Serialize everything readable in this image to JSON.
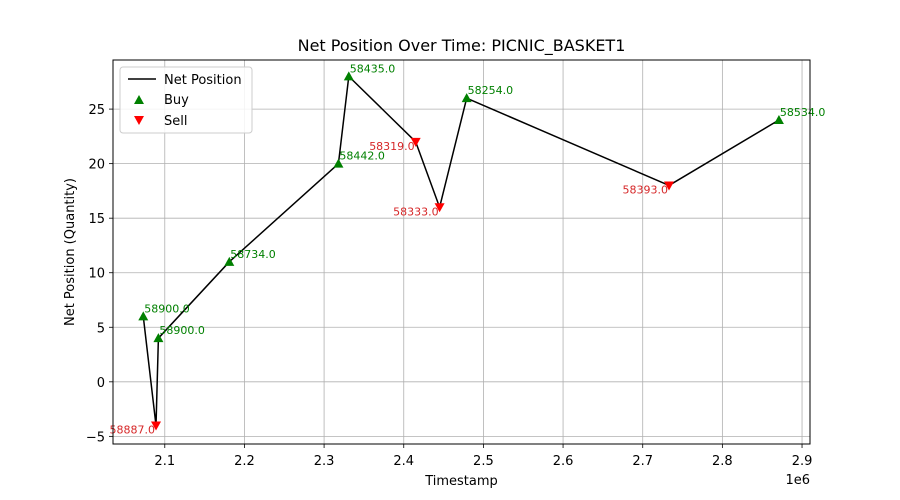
{
  "chart_data": {
    "type": "line",
    "title": "Net Position Over Time: PICNIC_BASKET1",
    "xlabel": "Timestamp",
    "ylabel": "Net Position (Quantity)",
    "x_multiplier_label": "1e6",
    "xlim": [
      2.035,
      2.91
    ],
    "ylim": [
      -5.7,
      29.5
    ],
    "xticks": [
      2.1,
      2.2,
      2.3,
      2.4,
      2.5,
      2.6,
      2.7,
      2.8,
      2.9
    ],
    "xtick_labels": [
      "2.1",
      "2.2",
      "2.3",
      "2.4",
      "2.5",
      "2.6",
      "2.7",
      "2.8",
      "2.9"
    ],
    "yticks": [
      -5,
      0,
      5,
      10,
      15,
      20,
      25
    ],
    "ytick_labels": [
      "−5",
      "0",
      "5",
      "10",
      "15",
      "20",
      "25"
    ],
    "grid": true,
    "legend_position": "top-left",
    "legend": [
      "Net Position",
      "Buy",
      "Sell"
    ],
    "series": [
      {
        "name": "Net Position",
        "color": "#000000",
        "x": [
          2.073,
          2.089,
          2.092,
          2.181,
          2.318,
          2.331,
          2.415,
          2.445,
          2.479,
          2.733,
          2.871
        ],
        "y": [
          6,
          -4,
          4,
          11,
          20,
          28,
          22,
          16,
          26,
          18,
          24
        ]
      }
    ],
    "buys": {
      "name": "Buy",
      "color": "#008000",
      "points": [
        {
          "x": 2.073,
          "y": 6,
          "label": "58900.0"
        },
        {
          "x": 2.092,
          "y": 4,
          "label": "58900.0"
        },
        {
          "x": 2.181,
          "y": 11,
          "label": "58734.0"
        },
        {
          "x": 2.318,
          "y": 20,
          "label": "58442.0"
        },
        {
          "x": 2.331,
          "y": 28,
          "label": "58435.0"
        },
        {
          "x": 2.479,
          "y": 26,
          "label": "58254.0"
        },
        {
          "x": 2.871,
          "y": 24,
          "label": "58534.0"
        }
      ]
    },
    "sells": {
      "name": "Sell",
      "color": "#ff0000",
      "label_color": "#d62728",
      "points": [
        {
          "x": 2.089,
          "y": -4,
          "label": "58887.0"
        },
        {
          "x": 2.415,
          "y": 22,
          "label": "58319.0"
        },
        {
          "x": 2.445,
          "y": 16,
          "label": "58333.0"
        },
        {
          "x": 2.733,
          "y": 18,
          "label": "58393.0"
        }
      ]
    }
  }
}
